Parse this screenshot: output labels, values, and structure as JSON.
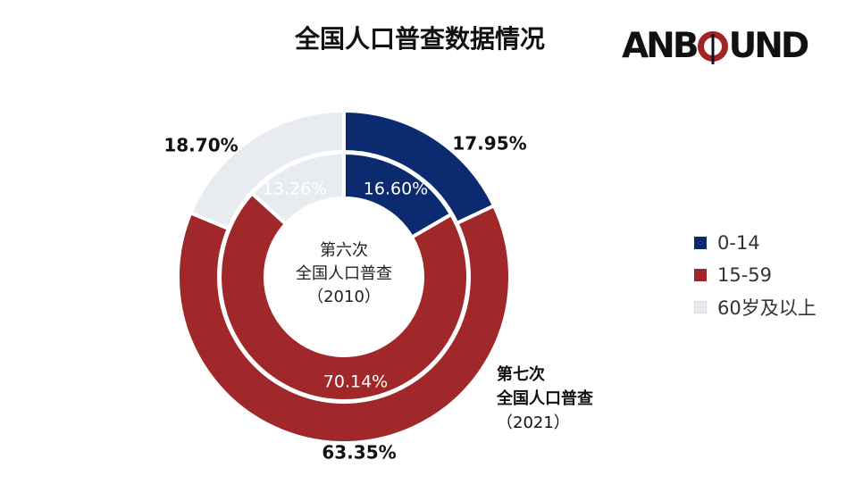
{
  "title": "全国人口普查数据情况",
  "logo": {
    "text_left": "ANB",
    "text_right": "UND"
  },
  "colors": {
    "age_0_14": "#0b2a6f",
    "age_15_59": "#a0282b",
    "age_60_plus": "#e8ebf0",
    "ring_border": "#ffffff"
  },
  "legend": [
    {
      "label": "0-14",
      "color": "#0b2a6f"
    },
    {
      "label": "15-59",
      "color": "#a0282b"
    },
    {
      "label": "60岁及以上",
      "color": "#e8ebf0"
    }
  ],
  "inner_ring_label": {
    "line1": "第六次",
    "line2": "全国人口普查",
    "line3": "（2010）"
  },
  "outer_ring_label": {
    "line1": "第七次",
    "line2": "全国人口普查",
    "line3": "（2021）"
  },
  "chart_data": {
    "type": "pie",
    "variant": "nested-donut",
    "categories": [
      "0-14",
      "15-59",
      "60岁及以上"
    ],
    "series": [
      {
        "name": "第七次全国人口普查（2021）",
        "ring": "outer",
        "values": [
          17.95,
          63.35,
          18.7
        ],
        "labels": [
          "17.95%",
          "63.35%",
          "18.70%"
        ]
      },
      {
        "name": "第六次全国人口普查（2010）",
        "ring": "inner",
        "values": [
          16.6,
          70.14,
          13.26
        ],
        "labels": [
          "16.60%",
          "70.14%",
          "13.26%"
        ]
      }
    ],
    "legend_position": "right"
  }
}
